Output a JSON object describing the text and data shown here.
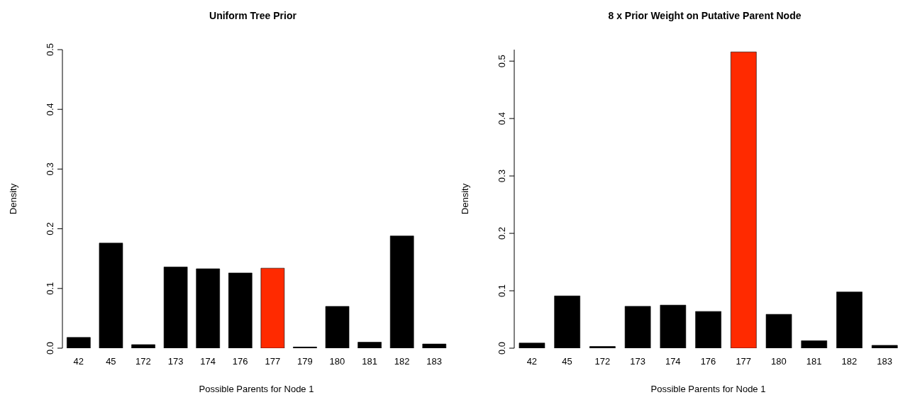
{
  "chart_data": [
    {
      "type": "bar",
      "title": "Uniform Tree Prior",
      "xlabel": "Possible Parents for Node 1",
      "ylabel": "Density",
      "categories": [
        "42",
        "45",
        "172",
        "173",
        "174",
        "176",
        "177",
        "179",
        "180",
        "181",
        "182",
        "183"
      ],
      "values": [
        0.018,
        0.176,
        0.006,
        0.136,
        0.133,
        0.126,
        0.134,
        0.002,
        0.07,
        0.01,
        0.188,
        0.007
      ],
      "colors": [
        "#000000",
        "#000000",
        "#000000",
        "#000000",
        "#000000",
        "#000000",
        "#ff2a00",
        "#000000",
        "#000000",
        "#000000",
        "#000000",
        "#000000"
      ],
      "ylim": [
        0,
        0.5
      ],
      "yticks": [
        {
          "value": 0,
          "label": "0.0"
        },
        0.1,
        0.2,
        0.3,
        0.4,
        0.5
      ]
    },
    {
      "type": "bar",
      "title": "8 x Prior Weight on Putative Parent Node",
      "xlabel": "Possible Parents for Node 1",
      "ylabel": "Density",
      "categories": [
        "42",
        "45",
        "172",
        "173",
        "174",
        "176",
        "177",
        "180",
        "181",
        "182",
        "183"
      ],
      "values": [
        0.009,
        0.091,
        0.003,
        0.073,
        0.075,
        0.064,
        0.516,
        0.059,
        0.013,
        0.098,
        0.005
      ],
      "colors": [
        "#000000",
        "#000000",
        "#000000",
        "#000000",
        "#000000",
        "#000000",
        "#ff2a00",
        "#000000",
        "#000000",
        "#000000",
        "#000000"
      ],
      "ylim": [
        0,
        0.52
      ],
      "yticks": [
        {
          "value": 0,
          "label": "0.0"
        },
        0.1,
        0.2,
        0.3,
        0.4,
        0.5
      ]
    }
  ]
}
